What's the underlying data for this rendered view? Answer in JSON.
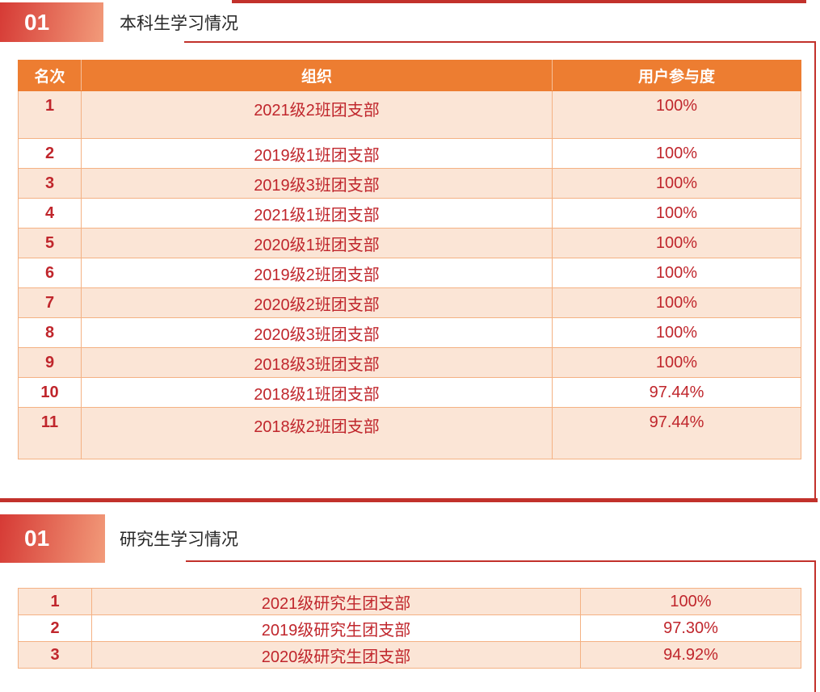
{
  "colors": {
    "header_orange": "#ED7D31",
    "row_peach": "#FBE5D6",
    "table_border": "#F4B183",
    "text_red": "#C0262C",
    "rule_red": "#C2312B",
    "badge_gradient_start": "#D63A35",
    "badge_gradient_end": "#F29B7A",
    "title_text": "#262626",
    "header_text": "#FFFFFF"
  },
  "sections": [
    {
      "badge": "01",
      "title": "本科生学习情况",
      "table": {
        "headers": [
          "名次",
          "组织",
          "用户参与度"
        ],
        "rows": [
          {
            "rank": "1",
            "org": "2021级2班团支部",
            "participation": "100%",
            "tall": 1
          },
          {
            "rank": "2",
            "org": "2019级1班团支部",
            "participation": "100%",
            "tall": 0
          },
          {
            "rank": "3",
            "org": "2019级3班团支部",
            "participation": "100%",
            "tall": 0
          },
          {
            "rank": "4",
            "org": "2021级1班团支部",
            "participation": "100%",
            "tall": 0
          },
          {
            "rank": "5",
            "org": "2020级1班团支部",
            "participation": "100%",
            "tall": 0
          },
          {
            "rank": "6",
            "org": "2019级2班团支部",
            "participation": "100%",
            "tall": 0
          },
          {
            "rank": "7",
            "org": "2020级2班团支部",
            "participation": "100%",
            "tall": 0
          },
          {
            "rank": "8",
            "org": "2020级3班团支部",
            "participation": "100%",
            "tall": 0
          },
          {
            "rank": "9",
            "org": "2018级3班团支部",
            "participation": "100%",
            "tall": 0
          },
          {
            "rank": "10",
            "org": "2018级1班团支部",
            "participation": "97.44%",
            "tall": 0
          },
          {
            "rank": "11",
            "org": "2018级2班团支部",
            "participation": "97.44%",
            "tall": 2
          }
        ]
      }
    },
    {
      "badge": "01",
      "title": "研究生学习情况",
      "table": {
        "headers": [],
        "rows": [
          {
            "rank": "1",
            "org": "2021级研究生团支部",
            "participation": "100%",
            "tall": 0
          },
          {
            "rank": "2",
            "org": "2019级研究生团支部",
            "participation": "97.30%",
            "tall": 0
          },
          {
            "rank": "3",
            "org": "2020级研究生团支部",
            "participation": "94.92%",
            "tall": 0
          }
        ]
      }
    }
  ]
}
